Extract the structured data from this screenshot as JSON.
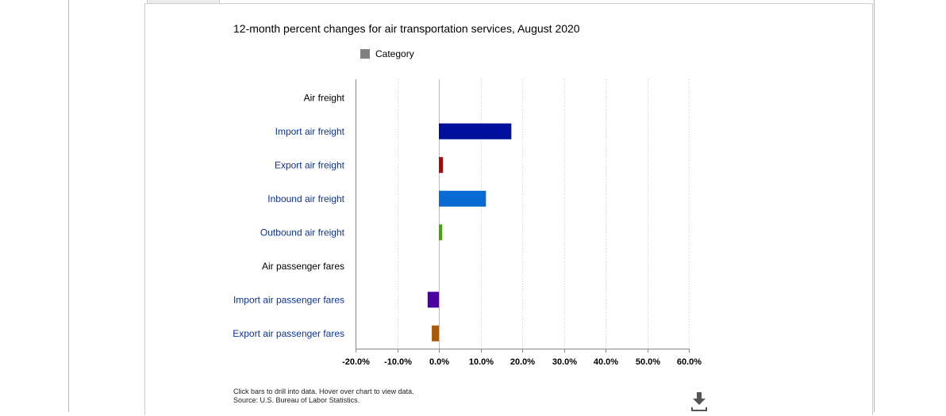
{
  "colors": {
    "legend_swatch": "#808080",
    "axis": "#888888",
    "grid": "#cfcfcf",
    "subcategory_label": "#0c3399",
    "header_label": "#000000"
  },
  "legend": {
    "label": "Category"
  },
  "chart_data": {
    "type": "bar",
    "orientation": "horizontal",
    "title": "12-month percent changes for air transportation services, August 2020",
    "xlabel": "",
    "ylabel": "",
    "xlim": [
      -20,
      60
    ],
    "x_ticks": [
      "-20.0%",
      "-10.0%",
      "0.0%",
      "10.0%",
      "20.0%",
      "30.0%",
      "40.0%",
      "50.0%",
      "60.0%"
    ],
    "grid": true,
    "legend_placement": "top",
    "categories": [
      "Air freight",
      "Import air freight",
      "Export air freight",
      "Inbound air freight",
      "Outbound air freight",
      "Air passenger fares",
      "Import air passenger fares",
      "Export air passenger fares"
    ],
    "values": [
      null,
      17.4,
      1.0,
      11.3,
      0.8,
      null,
      -2.7,
      -1.7
    ],
    "header_rows": [
      true,
      false,
      false,
      false,
      false,
      true,
      false,
      false
    ],
    "bar_colors": [
      null,
      "#000f9c",
      "#a30b0b",
      "#0a6ad4",
      "#46a30e",
      null,
      "#4a00a0",
      "#a85a0a"
    ]
  },
  "footer": {
    "note_line1": "Click bars to drill into data. Hover over chart to view data.",
    "note_line2": "Source: U.S. Bureau of Labor Statistics."
  },
  "icons": {
    "download": "download-icon"
  }
}
